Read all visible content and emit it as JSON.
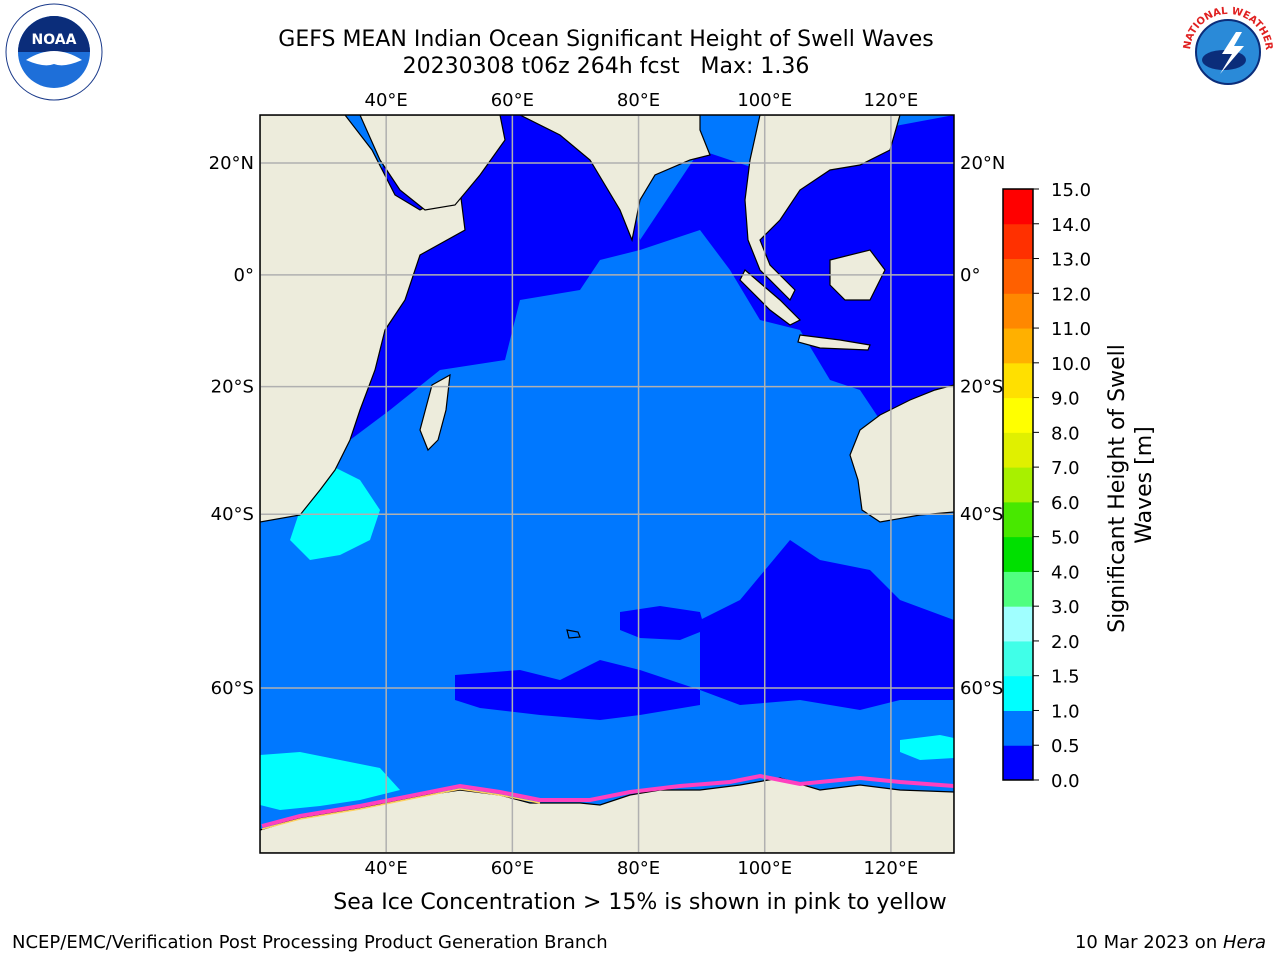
{
  "header": {
    "title_line1": "GEFS MEAN Indian Ocean Significant Height of Swell Waves",
    "title_line2": "20230308 t06z 264h fcst   Max: 1.36"
  },
  "logos": {
    "left": {
      "icon": "noaa-logo",
      "text": "NOAA"
    },
    "right": {
      "icon": "nws-logo",
      "text": "NATIONAL WEATHER SERVICE"
    }
  },
  "map": {
    "lon_labels": [
      "40°E",
      "60°E",
      "80°E",
      "100°E",
      "120°E"
    ],
    "lat_labels": [
      "20°N",
      "0°",
      "20°S",
      "40°S",
      "60°S"
    ],
    "extent": {
      "lon": [
        20,
        130
      ],
      "lat": [
        -72,
        28
      ]
    }
  },
  "colorbar": {
    "label": "Significant Height of Swell Waves [m]",
    "label_line1": "Significant Height of Swell",
    "label_line2": "Waves [m]",
    "ticks": [
      "0.0",
      "0.5",
      "1.0",
      "1.5",
      "2.0",
      "3.0",
      "4.0",
      "5.0",
      "6.0",
      "7.0",
      "8.0",
      "9.0",
      "10.0",
      "11.0",
      "12.0",
      "13.0",
      "14.0",
      "15.0"
    ],
    "colors": [
      "#0000ff",
      "#0078ff",
      "#00ffff",
      "#40ffe8",
      "#a0ffff",
      "#50ff80",
      "#00e000",
      "#48e800",
      "#a8f000",
      "#e0f000",
      "#ffff00",
      "#ffe000",
      "#ffb000",
      "#ff8800",
      "#ff6000",
      "#ff3000",
      "#ff0000"
    ]
  },
  "note": "Sea Ice Concentration > 15% is shown in pink to yellow",
  "footer": {
    "left": "NCEP/EMC/Verification Post Processing Product Generation Branch",
    "right_prefix": "10 Mar 2023 on ",
    "right_host": "Hera"
  }
}
